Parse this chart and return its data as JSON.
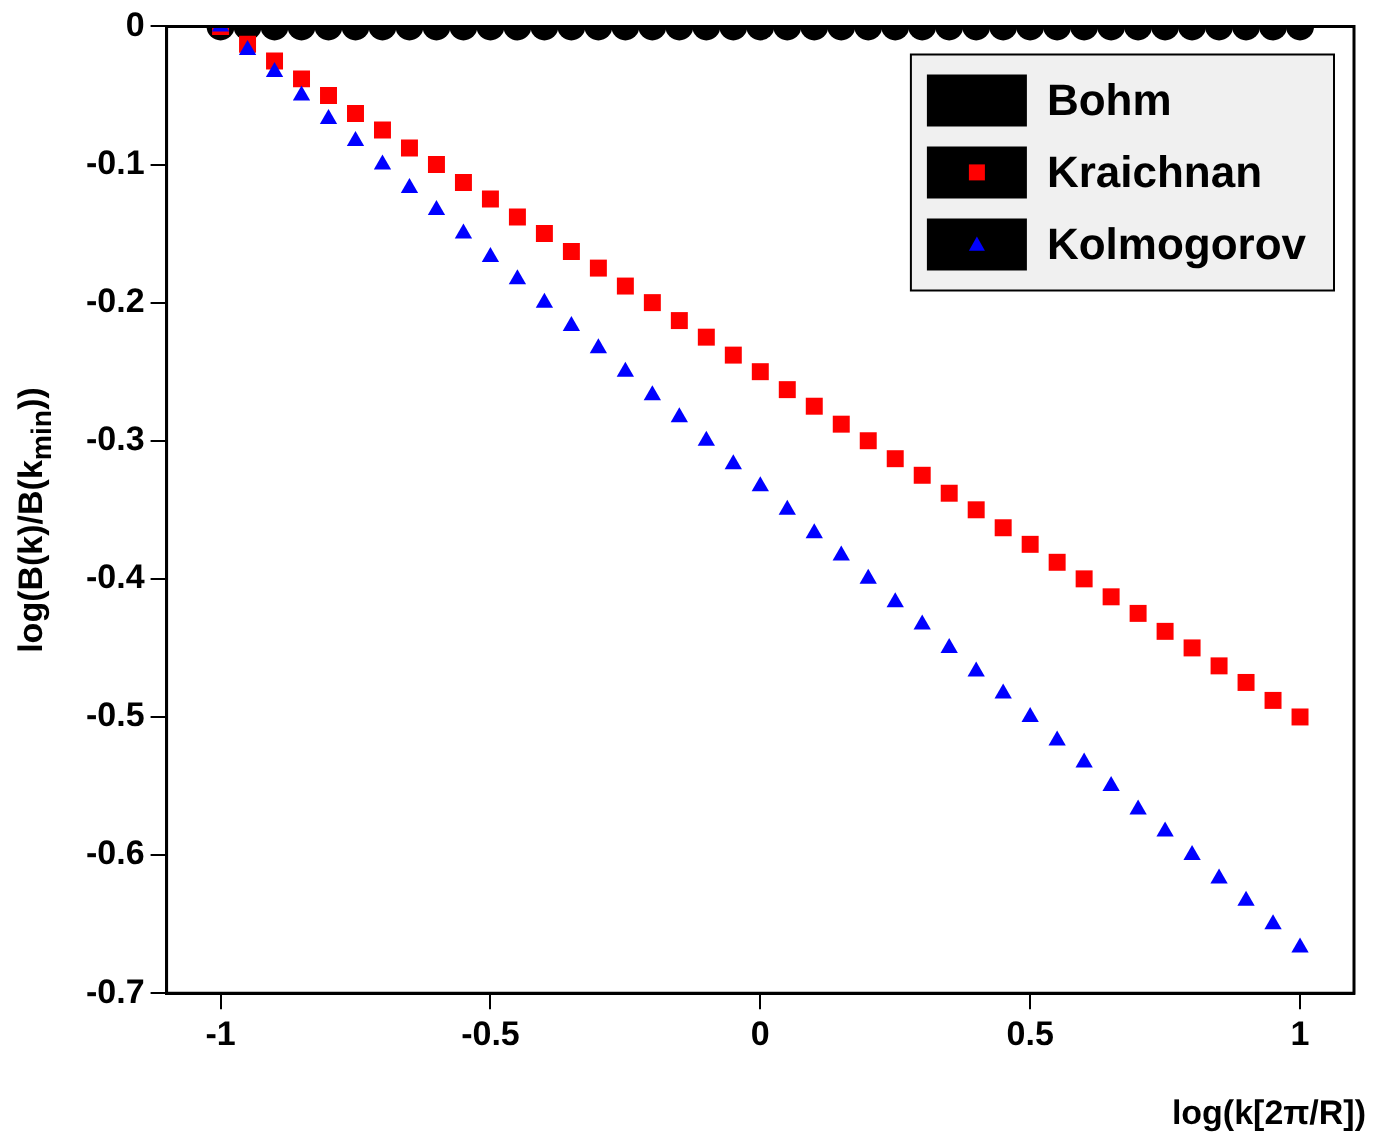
{
  "chart_data": {
    "type": "scatter",
    "xlabel": "log(k[2π/R])",
    "ylabel": "log(B(k)/B(k$_{min}$))",
    "x": [
      -1,
      -0.95,
      -0.9,
      -0.85,
      -0.8,
      -0.75,
      -0.7,
      -0.65,
      -0.6,
      -0.55,
      -0.5,
      -0.45,
      -0.4,
      -0.35,
      -0.3,
      -0.25,
      -0.2,
      -0.15,
      -0.1,
      -0.05,
      0,
      0.05,
      0.1,
      0.15,
      0.2,
      0.25,
      0.3,
      0.35,
      0.4,
      0.45,
      0.5,
      0.55,
      0.6,
      0.65,
      0.7,
      0.75,
      0.8,
      0.85,
      0.9,
      0.95,
      1
    ],
    "series": [
      {
        "name": "Bohm",
        "color": "#000000",
        "marker": "circle",
        "values": [
          0,
          0,
          0,
          0,
          0,
          0,
          0,
          0,
          0,
          0,
          0,
          0,
          0,
          0,
          0,
          0,
          0,
          0,
          0,
          0,
          0,
          0,
          0,
          0,
          0,
          0,
          0,
          0,
          0,
          0,
          0,
          0,
          0,
          0,
          0,
          0,
          0,
          0,
          0,
          0,
          0
        ]
      },
      {
        "name": "Kraichnan",
        "color": "#ff0000",
        "marker": "square",
        "values": [
          0,
          -0.013,
          -0.025,
          -0.038,
          -0.05,
          -0.063,
          -0.075,
          -0.088,
          -0.1,
          -0.113,
          -0.125,
          -0.138,
          -0.15,
          -0.163,
          -0.175,
          -0.188,
          -0.2,
          -0.213,
          -0.225,
          -0.238,
          -0.25,
          -0.263,
          -0.275,
          -0.288,
          -0.3,
          -0.313,
          -0.325,
          -0.338,
          -0.35,
          -0.363,
          -0.375,
          -0.388,
          -0.4,
          -0.413,
          -0.425,
          -0.438,
          -0.45,
          -0.463,
          -0.475,
          -0.488,
          -0.5
        ]
      },
      {
        "name": "Kolmogorov",
        "color": "#0000ff",
        "marker": "triangle",
        "values": [
          0,
          -0.017,
          -0.033,
          -0.05,
          -0.067,
          -0.083,
          -0.1,
          -0.117,
          -0.133,
          -0.15,
          -0.167,
          -0.183,
          -0.2,
          -0.217,
          -0.233,
          -0.25,
          -0.267,
          -0.283,
          -0.3,
          -0.317,
          -0.333,
          -0.35,
          -0.367,
          -0.383,
          -0.4,
          -0.417,
          -0.433,
          -0.45,
          -0.467,
          -0.483,
          -0.5,
          -0.517,
          -0.533,
          -0.55,
          -0.567,
          -0.583,
          -0.6,
          -0.617,
          -0.633,
          -0.65,
          -0.667
        ]
      }
    ],
    "xlim": [
      -1.1,
      1.1
    ],
    "ylim": [
      -0.7,
      0
    ],
    "xticks": [
      -1,
      -0.5,
      0,
      0.5,
      1
    ],
    "yticks": [
      -0.7,
      -0.6,
      -0.5,
      -0.4,
      -0.3,
      -0.2,
      -0.1,
      0
    ],
    "grid": false,
    "legend": "top right"
  }
}
